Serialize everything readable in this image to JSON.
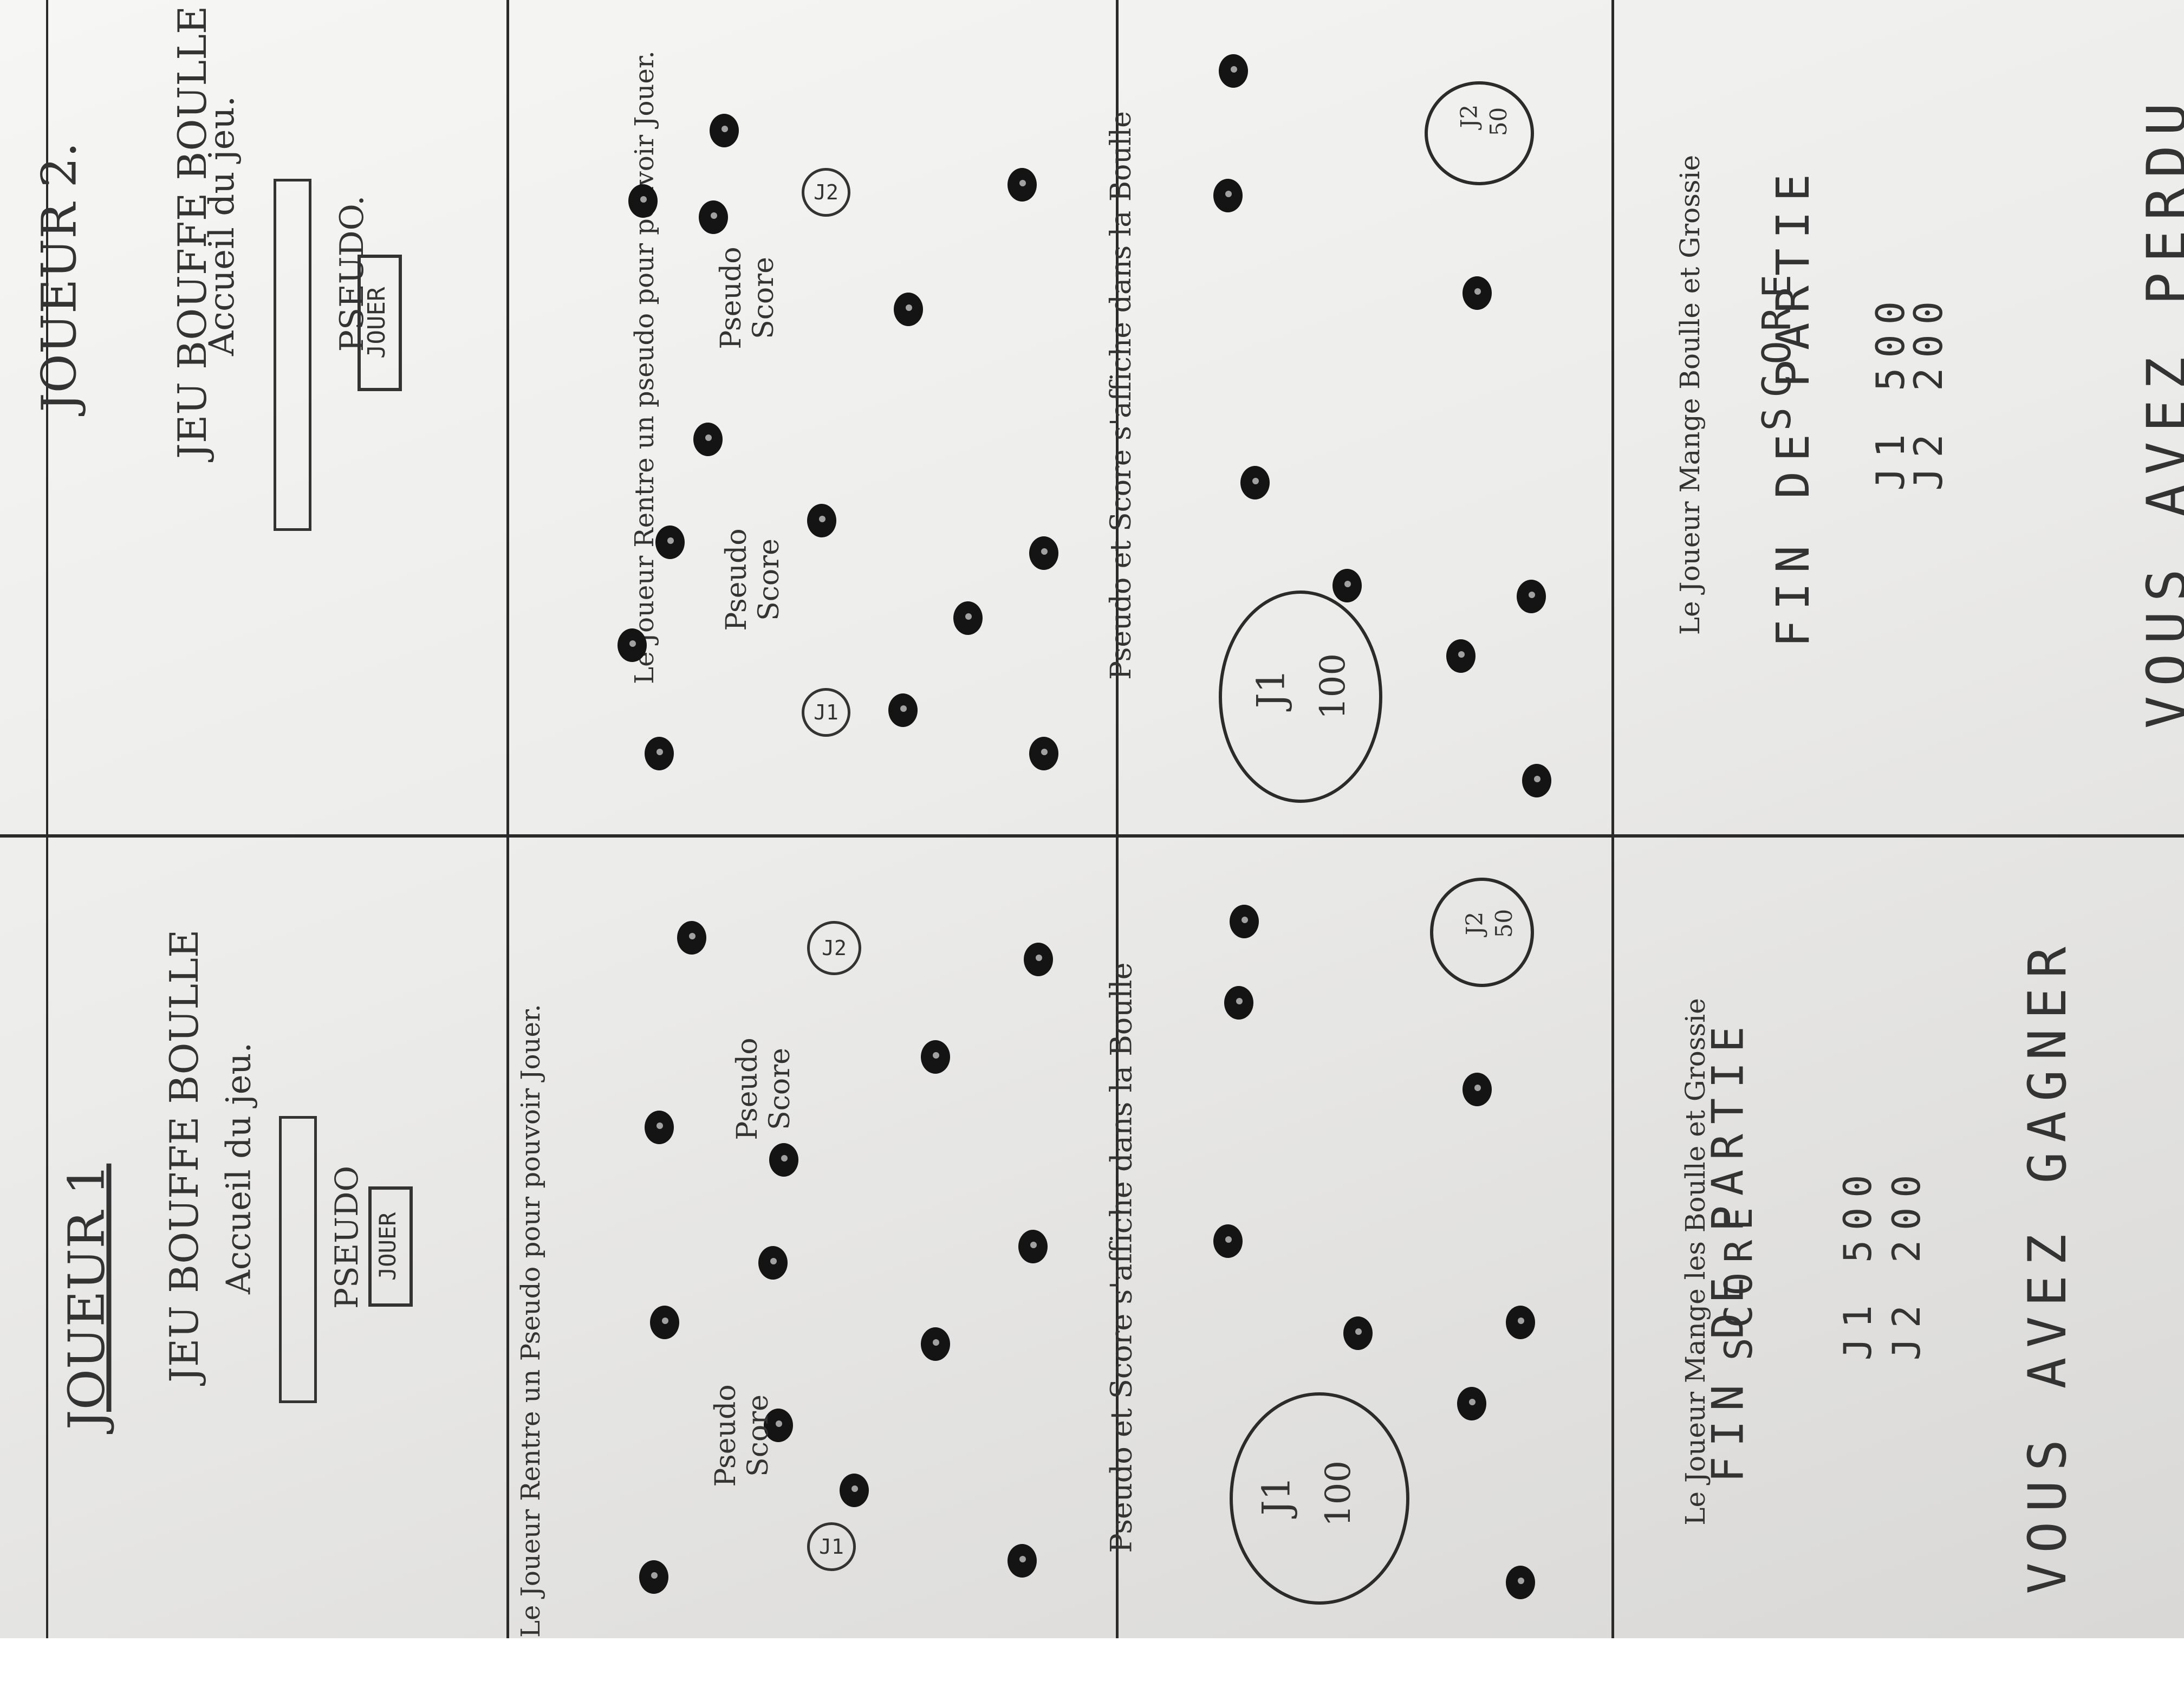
{
  "players": [
    {
      "header": "JOUEUR 1",
      "welcome": {
        "title": "JEU BOUFFE BOULLE",
        "subtitle": "Accueil du jeu.",
        "pseudo_label": "PSEUDO",
        "play_button": "JOUER"
      },
      "caption_row2": "Le Joueur Rentre un Pseudo pour pouvoir Jouer.",
      "row2": {
        "note": "Pseudo Score",
        "self_badge": "J1",
        "other_badge": "J2",
        "other_note": "Pseudo Score"
      },
      "caption_row3": "Pseudo et Score s'affiche dans la Boulle",
      "row3": {
        "big_name": "J1",
        "big_score": "100",
        "small_name": "J2",
        "small_score": "50"
      },
      "caption_row4": "Le Joueur Mange les Boulle et Grossie",
      "row4": {
        "title": "FIN DE PARTIE",
        "score_label": "SCORE",
        "lines": [
          "J1 500",
          "J2 200"
        ],
        "result": "VOUS AVEZ GAGNER"
      }
    },
    {
      "header": "JOUEUR 2.",
      "welcome": {
        "title": "JEU BOUFFE BOULLE",
        "subtitle": "Accueil du jeu.",
        "pseudo_label": "PSEUDO.",
        "play_button": "JOUER"
      },
      "caption_row2": "Le Joueur Rentre un pseudo pour pouvoir Jouer.",
      "row2": {
        "note": "Pseudo Score",
        "self_badge": "J1",
        "other_badge": "J2",
        "other_note": "Pseudo Score"
      },
      "caption_row3": "Pseudo et Score s'affiche dans la Boulle",
      "row3": {
        "big_name": "J1",
        "big_score": "100",
        "small_name": "J2",
        "small_score": "50"
      },
      "caption_row4": "Le Joueur Mange Boulle et Grossie",
      "row4": {
        "title": "FIN DE PARTIE",
        "score_label": "SCORE",
        "lines": [
          "J1 500",
          "J2 200"
        ],
        "result": "VOUS AVEZ PERDU"
      }
    }
  ],
  "colors": {
    "paper": "#efefed",
    "ink": "#222222"
  }
}
